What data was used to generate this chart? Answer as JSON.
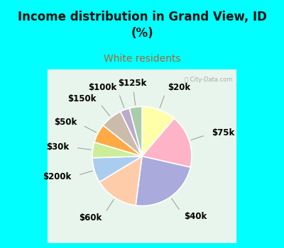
{
  "title": "Income distribution in Grand View, ID\n(%)",
  "subtitle": "White residents",
  "bg_cyan": "#00FFFF",
  "bg_chart": "#d8ede0",
  "title_color": "#111111",
  "subtitle_color": "#AA6633",
  "slices": [
    {
      "label": "$20k",
      "value": 11,
      "color": "#FFFFAA"
    },
    {
      "label": "$75k",
      "value": 17,
      "color": "#FFB3C6"
    },
    {
      "label": "$40k",
      "value": 23,
      "color": "#AAAADD"
    },
    {
      "label": "$60k",
      "value": 14,
      "color": "#FFCCAA"
    },
    {
      "label": "$200k",
      "value": 8,
      "color": "#AACCEE"
    },
    {
      "label": "$30k",
      "value": 5,
      "color": "#CCEE99"
    },
    {
      "label": "$50k",
      "value": 6,
      "color": "#FFAA44"
    },
    {
      "label": "$150k",
      "value": 7,
      "color": "#CCBBAA"
    },
    {
      "label": "$100k",
      "value": 3,
      "color": "#BBAACC"
    },
    {
      "label": "$125k",
      "value": 4,
      "color": "#AACCAA"
    }
  ],
  "title_fontsize": 12,
  "subtitle_fontsize": 10,
  "label_fontsize": 8.5,
  "watermark": "⒲ City-Data.com"
}
